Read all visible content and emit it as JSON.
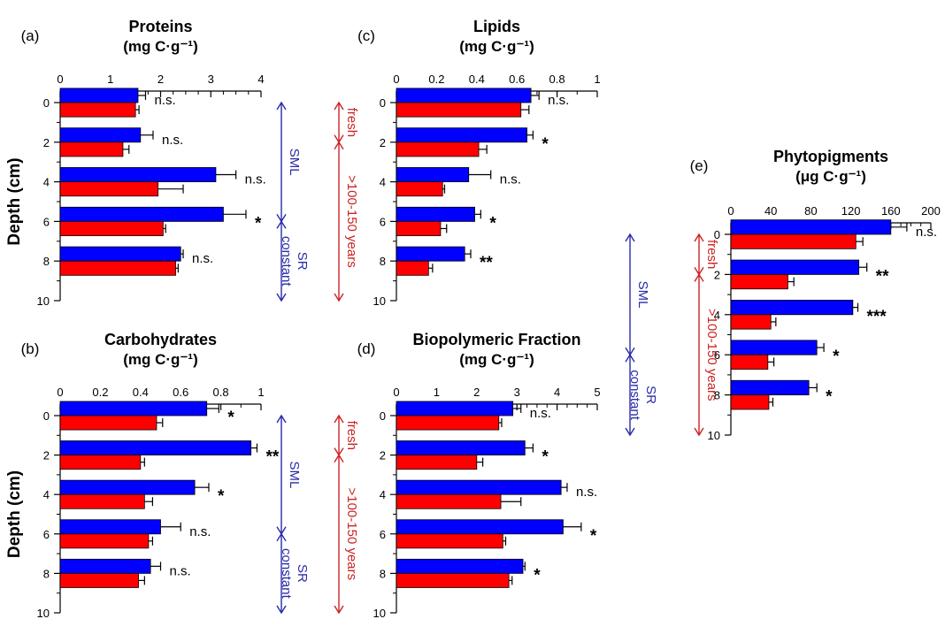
{
  "figure": {
    "depth_axis_label": "Depth (cm)",
    "colors": {
      "fresh_series": "#0000ff",
      "aged_series": "#ff0000",
      "bar_outline": "#000000",
      "sml_annotation": "#2a2aaa",
      "fresh_annotation": "#cc2222"
    }
  },
  "chart_data": [
    {
      "id": "a",
      "type": "bar",
      "orientation": "horizontal",
      "panel_label": "(a)",
      "title": "Proteins",
      "units": "(mg C·g⁻¹)",
      "xlim": [
        0,
        4
      ],
      "x_ticks": [
        "0",
        "1",
        "2",
        "3",
        "4"
      ],
      "ylim": [
        0,
        10
      ],
      "y_ticks": [
        "0",
        "2",
        "4",
        "6",
        "8",
        "10"
      ],
      "ylabel": "Depth (cm)",
      "depths": [
        0,
        2,
        4,
        6,
        8
      ],
      "series": [
        {
          "values": [
            1.55,
            1.6,
            3.1,
            3.25,
            2.4
          ],
          "errors": [
            0.15,
            0.25,
            0.4,
            0.45,
            0.05
          ]
        },
        {
          "values": [
            1.5,
            1.25,
            1.95,
            2.05,
            2.3
          ],
          "errors": [
            0.07,
            0.12,
            0.5,
            0.05,
            0.05
          ]
        }
      ],
      "significance": [
        "n.s.",
        "n.s.",
        "n.s.",
        "*",
        "n.s."
      ],
      "annotations": {
        "blue_arrows": [
          {
            "from_depth": 0,
            "to_depth": 6,
            "label": "SML"
          },
          {
            "from_depth": 6,
            "to_depth": 10,
            "label": "constant SR",
            "lines": [
              "constant",
              "SR"
            ]
          }
        ],
        "red_arrows": [
          {
            "from_depth": 0,
            "to_depth": 2,
            "label": "fresh"
          },
          {
            "from_depth": 2,
            "to_depth": 10,
            "label": ">100-150 years"
          }
        ]
      }
    },
    {
      "id": "b",
      "type": "bar",
      "orientation": "horizontal",
      "panel_label": "(b)",
      "title": "Carbohydrates",
      "units": "(mg C·g⁻¹)",
      "xlim": [
        0,
        1
      ],
      "x_ticks": [
        "0",
        "0.2",
        "0.4",
        "0.6",
        "0.8",
        "1"
      ],
      "ylim": [
        0,
        10
      ],
      "y_ticks": [
        "0",
        "2",
        "4",
        "6",
        "8",
        "10"
      ],
      "ylabel": "Depth (cm)",
      "depths": [
        0,
        2,
        4,
        6,
        8
      ],
      "series": [
        {
          "values": [
            0.73,
            0.95,
            0.67,
            0.5,
            0.45
          ],
          "errors": [
            0.06,
            0.03,
            0.07,
            0.1,
            0.05
          ]
        },
        {
          "values": [
            0.48,
            0.4,
            0.42,
            0.44,
            0.39
          ],
          "errors": [
            0.03,
            0.02,
            0.04,
            0.02,
            0.03
          ]
        }
      ],
      "significance": [
        "*",
        "**",
        "*",
        "n.s.",
        "n.s."
      ],
      "annotations": {
        "blue_arrows": [
          {
            "from_depth": 0,
            "to_depth": 6,
            "label": "SML"
          },
          {
            "from_depth": 6,
            "to_depth": 10,
            "label": "constant SR",
            "lines": [
              "constant",
              "SR"
            ]
          }
        ],
        "red_arrows": [
          {
            "from_depth": 0,
            "to_depth": 2,
            "label": "fresh"
          },
          {
            "from_depth": 2,
            "to_depth": 10,
            "label": ">100-150 years"
          }
        ]
      }
    },
    {
      "id": "c",
      "type": "bar",
      "orientation": "horizontal",
      "panel_label": "(c)",
      "title": "Lipids",
      "units": "(mg C·g⁻¹)",
      "xlim": [
        0,
        1
      ],
      "x_ticks": [
        "0",
        "0.2",
        "0.4",
        "0.6",
        "0.8",
        "1"
      ],
      "ylim": [
        0,
        10
      ],
      "y_ticks": [
        "0",
        "2",
        "4",
        "6",
        "8",
        "10"
      ],
      "depths": [
        0,
        2,
        4,
        6,
        8
      ],
      "series": [
        {
          "values": [
            0.67,
            0.65,
            0.36,
            0.39,
            0.34
          ],
          "errors": [
            0.04,
            0.03,
            0.11,
            0.03,
            0.03
          ]
        },
        {
          "values": [
            0.62,
            0.41,
            0.23,
            0.22,
            0.16
          ],
          "errors": [
            0.04,
            0.04,
            0.01,
            0.03,
            0.02
          ]
        }
      ],
      "significance": [
        "n.s.",
        "*",
        "n.s.",
        "*",
        "**"
      ]
    },
    {
      "id": "d",
      "type": "bar",
      "orientation": "horizontal",
      "panel_label": "(d)",
      "title": "Biopolymeric Fraction",
      "units": "(mg C·g⁻¹)",
      "xlim": [
        0,
        5
      ],
      "x_ticks": [
        "0",
        "1",
        "2",
        "3",
        "4",
        "5"
      ],
      "ylim": [
        0,
        10
      ],
      "y_ticks": [
        "0",
        "2",
        "4",
        "6",
        "8",
        "10"
      ],
      "depths": [
        0,
        2,
        4,
        6,
        8
      ],
      "series": [
        {
          "values": [
            2.9,
            3.2,
            4.1,
            4.15,
            3.15
          ],
          "errors": [
            0.2,
            0.2,
            0.15,
            0.45,
            0.05
          ]
        },
        {
          "values": [
            2.55,
            2.0,
            2.6,
            2.65,
            2.8
          ],
          "errors": [
            0.07,
            0.15,
            0.5,
            0.07,
            0.08
          ]
        }
      ],
      "significance": [
        "n.s.",
        "*",
        "n.s.",
        "*",
        "*"
      ]
    },
    {
      "id": "e",
      "type": "bar",
      "orientation": "horizontal",
      "panel_label": "(e)",
      "title": "Phytopigments",
      "units": "(μg C·g⁻¹)",
      "xlim": [
        0,
        200
      ],
      "x_ticks": [
        "0",
        "40",
        "80",
        "120",
        "160",
        "200"
      ],
      "ylim": [
        0,
        10
      ],
      "y_ticks": [
        "0",
        "2",
        "4",
        "6",
        "8",
        "10"
      ],
      "depths": [
        0,
        2,
        4,
        6,
        8
      ],
      "series": [
        {
          "values": [
            160,
            128,
            122,
            86,
            78
          ],
          "errors": [
            16,
            8,
            5,
            7,
            8
          ]
        },
        {
          "values": [
            125,
            57,
            40,
            37,
            38
          ],
          "errors": [
            7,
            6,
            5,
            6,
            4
          ]
        }
      ],
      "significance": [
        "n.s.",
        "**",
        "***",
        "*",
        "*"
      ],
      "annotations": {
        "blue_arrows": [
          {
            "from_depth": 0,
            "to_depth": 6,
            "label": "SML"
          },
          {
            "from_depth": 6,
            "to_depth": 10,
            "label": "constant SR",
            "lines": [
              "constant",
              "SR"
            ]
          }
        ],
        "red_arrows": [
          {
            "from_depth": 0,
            "to_depth": 2,
            "label": "fresh"
          },
          {
            "from_depth": 2,
            "to_depth": 10,
            "label": ">100-150 years"
          }
        ]
      }
    }
  ]
}
